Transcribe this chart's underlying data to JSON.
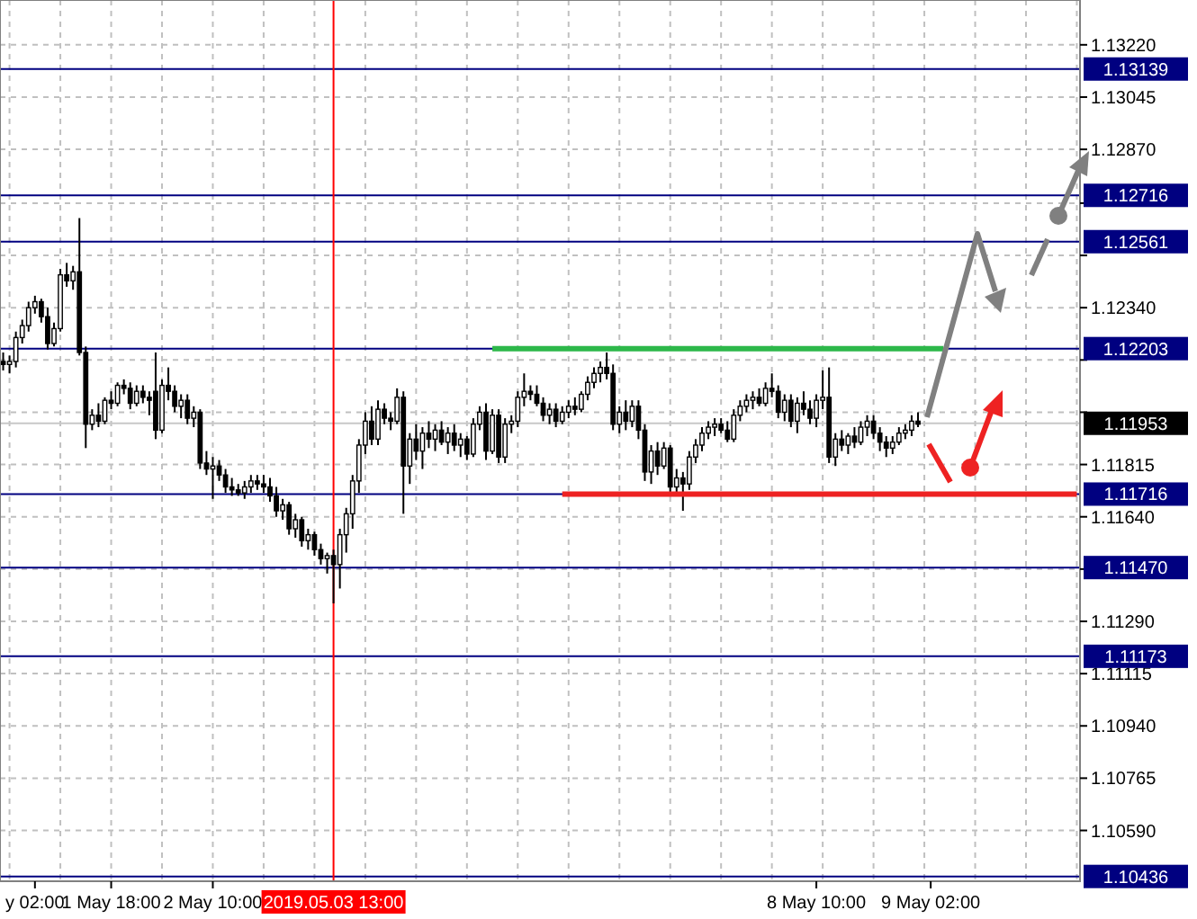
{
  "chart_data": {
    "type": "candlestick",
    "categories": [
      null,
      null,
      null,
      null,
      null,
      "y 02:00",
      null,
      null,
      null,
      null,
      null,
      null,
      null,
      null,
      null,
      null,
      null,
      "1 May 18:00",
      null,
      null,
      null,
      null,
      null,
      null,
      null,
      null,
      null,
      null,
      null,
      null,
      null,
      null,
      null,
      "2 May 10:00",
      null,
      null,
      null,
      null,
      null,
      null,
      null,
      null,
      null,
      null,
      null,
      null,
      null,
      null,
      null,
      null,
      null,
      null,
      "2019.05.03 13:00",
      null,
      null,
      null,
      null,
      null,
      null,
      null,
      null,
      null,
      null,
      null,
      null,
      null,
      null,
      null,
      null,
      null,
      null,
      null,
      null,
      null,
      null,
      null,
      null,
      null,
      null,
      null,
      null,
      null,
      null,
      null,
      null,
      null,
      null,
      null,
      null,
      null,
      null,
      null,
      null,
      null,
      null,
      null,
      null,
      null,
      null,
      null,
      null,
      null,
      null,
      null,
      null,
      null,
      null,
      null,
      null,
      null,
      null,
      null,
      null,
      null,
      null,
      null,
      null,
      null,
      null,
      null,
      null,
      null,
      null,
      null,
      null,
      null,
      null,
      null,
      "8 May 10:00",
      null,
      null,
      null,
      null,
      null,
      null,
      null,
      null,
      null,
      null,
      null,
      null,
      null,
      null,
      null,
      null,
      null,
      "9 May 02:00",
      null,
      null,
      null,
      null,
      null,
      null,
      null,
      null,
      null,
      null,
      null,
      null,
      null,
      null,
      null,
      null,
      null,
      null,
      null,
      null,
      null,
      null,
      null
    ],
    "ohlc": [
      [
        1.1216,
        1.1219,
        1.1213,
        1.1215
      ],
      [
        1.1215,
        1.1218,
        1.1212,
        1.1216
      ],
      [
        1.1216,
        1.1226,
        1.1214,
        1.1224
      ],
      [
        1.1224,
        1.123,
        1.1222,
        1.1228
      ],
      [
        1.1228,
        1.1236,
        1.1226,
        1.1234
      ],
      [
        1.1234,
        1.1238,
        1.1232,
        1.1236
      ],
      [
        1.1236,
        1.1237,
        1.1229,
        1.1231
      ],
      [
        1.1231,
        1.1234,
        1.122,
        1.1222
      ],
      [
        1.1222,
        1.1229,
        1.1221,
        1.1227
      ],
      [
        1.1227,
        1.1247,
        1.1226,
        1.1245
      ],
      [
        1.1245,
        1.1249,
        1.1241,
        1.1243
      ],
      [
        1.1243,
        1.1248,
        1.124,
        1.1246
      ],
      [
        1.1246,
        1.1264,
        1.1218,
        1.1219
      ],
      [
        1.1219,
        1.1221,
        1.1187,
        1.1195
      ],
      [
        1.1195,
        1.12,
        1.1193,
        1.1198
      ],
      [
        1.1198,
        1.1202,
        1.1194,
        1.1196
      ],
      [
        1.1196,
        1.1204,
        1.1195,
        1.1203
      ],
      [
        1.1203,
        1.1206,
        1.12,
        1.1202
      ],
      [
        1.1202,
        1.1209,
        1.1201,
        1.1208
      ],
      [
        1.1208,
        1.121,
        1.1205,
        1.1207
      ],
      [
        1.1207,
        1.1209,
        1.12,
        1.1202
      ],
      [
        1.1202,
        1.1208,
        1.1201,
        1.1206
      ],
      [
        1.1206,
        1.1208,
        1.1202,
        1.1204
      ],
      [
        1.1204,
        1.1206,
        1.1198,
        1.1203
      ],
      [
        1.1206,
        1.1219,
        1.119,
        1.1193
      ],
      [
        1.1193,
        1.121,
        1.1192,
        1.1208
      ],
      [
        1.1208,
        1.1214,
        1.1203,
        1.1206
      ],
      [
        1.1206,
        1.1208,
        1.1199,
        1.1201
      ],
      [
        1.1201,
        1.1205,
        1.1197,
        1.1203
      ],
      [
        1.1203,
        1.1205,
        1.1195,
        1.1197
      ],
      [
        1.1197,
        1.1201,
        1.1194,
        1.1199
      ],
      [
        1.1199,
        1.12,
        1.118,
        1.1182
      ],
      [
        1.1182,
        1.1186,
        1.1178,
        1.118
      ],
      [
        1.118,
        1.1184,
        1.117,
        1.1181
      ],
      [
        1.1181,
        1.1183,
        1.1176,
        1.1178
      ],
      [
        1.1178,
        1.118,
        1.1172,
        1.1174
      ],
      [
        1.1174,
        1.1177,
        1.1171,
        1.1173
      ],
      [
        1.1173,
        1.1175,
        1.1171,
        1.1172
      ],
      [
        1.1172,
        1.1176,
        1.117,
        1.1174
      ],
      [
        1.1174,
        1.1178,
        1.1172,
        1.1176
      ],
      [
        1.1176,
        1.1178,
        1.1173,
        1.1175
      ],
      [
        1.1175,
        1.1178,
        1.1172,
        1.1174
      ],
      [
        1.1174,
        1.1177,
        1.1169,
        1.1171
      ],
      [
        1.1171,
        1.1174,
        1.1164,
        1.1166
      ],
      [
        1.1166,
        1.117,
        1.1163,
        1.1168
      ],
      [
        1.1168,
        1.1169,
        1.1158,
        1.116
      ],
      [
        1.116,
        1.1165,
        1.1157,
        1.1163
      ],
      [
        1.1163,
        1.1164,
        1.1154,
        1.1156
      ],
      [
        1.1156,
        1.116,
        1.1153,
        1.1158
      ],
      [
        1.1158,
        1.1159,
        1.1151,
        1.1153
      ],
      [
        1.1153,
        1.1155,
        1.1148,
        1.115
      ],
      [
        1.115,
        1.1152,
        1.1145,
        1.1151
      ],
      [
        1.1151,
        1.1153,
        1.1135,
        1.1148
      ],
      [
        1.1148,
        1.116,
        1.114,
        1.1158
      ],
      [
        1.1158,
        1.1167,
        1.1152,
        1.1165
      ],
      [
        1.1165,
        1.1178,
        1.116,
        1.1176
      ],
      [
        1.1176,
        1.119,
        1.1172,
        1.1188
      ],
      [
        1.1188,
        1.1199,
        1.1185,
        1.1196
      ],
      [
        1.1196,
        1.1201,
        1.1188,
        1.119
      ],
      [
        1.119,
        1.1203,
        1.1188,
        1.12
      ],
      [
        1.12,
        1.1202,
        1.1195,
        1.1197
      ],
      [
        1.1197,
        1.1199,
        1.1193,
        1.1196
      ],
      [
        1.1196,
        1.1207,
        1.1195,
        1.1204
      ],
      [
        1.1204,
        1.1206,
        1.1165,
        1.1181
      ],
      [
        1.1181,
        1.1192,
        1.1175,
        1.119
      ],
      [
        1.119,
        1.1195,
        1.1183,
        1.1186
      ],
      [
        1.1186,
        1.1194,
        1.118,
        1.1192
      ],
      [
        1.1192,
        1.1196,
        1.1187,
        1.119
      ],
      [
        1.119,
        1.1195,
        1.1186,
        1.1193
      ],
      [
        1.1193,
        1.1196,
        1.1188,
        1.1189
      ],
      [
        1.1189,
        1.1194,
        1.1185,
        1.1192
      ],
      [
        1.1192,
        1.1195,
        1.1186,
        1.1188
      ],
      [
        1.1188,
        1.1192,
        1.1184,
        1.119
      ],
      [
        1.119,
        1.1191,
        1.1183,
        1.1185
      ],
      [
        1.1185,
        1.1197,
        1.1184,
        1.1195
      ],
      [
        1.1195,
        1.1201,
        1.1193,
        1.1199
      ],
      [
        1.1199,
        1.1202,
        1.1183,
        1.1186
      ],
      [
        1.1186,
        1.12,
        1.1185,
        1.1198
      ],
      [
        1.1198,
        1.12,
        1.1182,
        1.1184
      ],
      [
        1.1184,
        1.1197,
        1.1182,
        1.1195
      ],
      [
        1.1195,
        1.1198,
        1.1192,
        1.1196
      ],
      [
        1.1196,
        1.1206,
        1.1194,
        1.1204
      ],
      [
        1.1204,
        1.1212,
        1.1201,
        1.1206
      ],
      [
        1.1206,
        1.1208,
        1.1203,
        1.1205
      ],
      [
        1.1205,
        1.1208,
        1.1201,
        1.1202
      ],
      [
        1.1202,
        1.1204,
        1.1196,
        1.1198
      ],
      [
        1.1198,
        1.1202,
        1.1195,
        1.12
      ],
      [
        1.12,
        1.1202,
        1.1194,
        1.1196
      ],
      [
        1.1196,
        1.1201,
        1.1195,
        1.1199
      ],
      [
        1.1199,
        1.1203,
        1.1197,
        1.1201
      ],
      [
        1.1201,
        1.1204,
        1.1198,
        1.12
      ],
      [
        1.12,
        1.1206,
        1.1199,
        1.1205
      ],
      [
        1.1205,
        1.1211,
        1.1203,
        1.1209
      ],
      [
        1.1209,
        1.1214,
        1.1207,
        1.1212
      ],
      [
        1.1212,
        1.1216,
        1.1209,
        1.1214
      ],
      [
        1.1214,
        1.1219,
        1.121,
        1.1212
      ],
      [
        1.1212,
        1.1215,
        1.1193,
        1.1195
      ],
      [
        1.1195,
        1.1201,
        1.1192,
        1.1199
      ],
      [
        1.1199,
        1.1203,
        1.1193,
        1.1196
      ],
      [
        1.1196,
        1.1203,
        1.1194,
        1.1201
      ],
      [
        1.1201,
        1.1203,
        1.119,
        1.1193
      ],
      [
        1.1193,
        1.1195,
        1.1176,
        1.1179
      ],
      [
        1.1179,
        1.1188,
        1.1175,
        1.1186
      ],
      [
        1.1186,
        1.1189,
        1.1178,
        1.1181
      ],
      [
        1.1181,
        1.1189,
        1.118,
        1.1187
      ],
      [
        1.1187,
        1.1188,
        1.1172,
        1.1174
      ],
      [
        1.1174,
        1.118,
        1.1171,
        1.1177
      ],
      [
        1.1177,
        1.1179,
        1.1166,
        1.1175
      ],
      [
        1.1175,
        1.1186,
        1.1173,
        1.1184
      ],
      [
        1.1184,
        1.119,
        1.1182,
        1.1188
      ],
      [
        1.1188,
        1.1194,
        1.1186,
        1.1192
      ],
      [
        1.1192,
        1.1196,
        1.119,
        1.1194
      ],
      [
        1.1194,
        1.1197,
        1.1191,
        1.1195
      ],
      [
        1.1195,
        1.1197,
        1.1192,
        1.1193
      ],
      [
        1.1193,
        1.1196,
        1.1189,
        1.119
      ],
      [
        1.119,
        1.12,
        1.1189,
        1.1198
      ],
      [
        1.1198,
        1.1203,
        1.1196,
        1.1201
      ],
      [
        1.1201,
        1.1205,
        1.1199,
        1.1203
      ],
      [
        1.1203,
        1.1206,
        1.12,
        1.1204
      ],
      [
        1.1204,
        1.1207,
        1.1201,
        1.1202
      ],
      [
        1.1202,
        1.1209,
        1.1201,
        1.1207
      ],
      [
        1.1207,
        1.1212,
        1.1204,
        1.1206
      ],
      [
        1.1206,
        1.1208,
        1.1197,
        1.1199
      ],
      [
        1.1199,
        1.1205,
        1.1196,
        1.1203
      ],
      [
        1.1203,
        1.1205,
        1.1194,
        1.1196
      ],
      [
        1.1196,
        1.1204,
        1.1192,
        1.1202
      ],
      [
        1.1202,
        1.1206,
        1.1198,
        1.12
      ],
      [
        1.12,
        1.1203,
        1.1195,
        1.1197
      ],
      [
        1.1197,
        1.1205,
        1.1194,
        1.1203
      ],
      [
        1.1203,
        1.1213,
        1.12,
        1.1204
      ],
      [
        1.1204,
        1.1214,
        1.1182,
        1.1184
      ],
      [
        1.1184,
        1.1192,
        1.1181,
        1.119
      ],
      [
        1.119,
        1.1193,
        1.1186,
        1.1188
      ],
      [
        1.1188,
        1.1192,
        1.1185,
        1.1191
      ],
      [
        1.1191,
        1.1194,
        1.1187,
        1.1189
      ],
      [
        1.1189,
        1.1196,
        1.1188,
        1.1194
      ],
      [
        1.1194,
        1.1198,
        1.1191,
        1.1196
      ],
      [
        1.1196,
        1.1198,
        1.119,
        1.1192
      ],
      [
        1.1192,
        1.1194,
        1.1186,
        1.1189
      ],
      [
        1.1189,
        1.1191,
        1.1184,
        1.1187
      ],
      [
        1.1187,
        1.1191,
        1.1185,
        1.1189
      ],
      [
        1.1189,
        1.1194,
        1.1188,
        1.1192
      ],
      [
        1.1192,
        1.1195,
        1.119,
        1.1193
      ],
      [
        1.1193,
        1.1198,
        1.1191,
        1.1196
      ],
      [
        1.1196,
        1.1199,
        1.1194,
        1.1195
      ],
      null,
      null,
      null,
      null,
      null,
      null,
      null,
      null,
      null,
      null,
      null,
      null,
      null,
      null,
      null,
      null,
      null,
      null,
      null,
      null,
      null,
      null,
      null,
      null,
      null
    ],
    "series": [
      {
        "type": "line",
        "color": "#2db84a",
        "values": [
          null,
          null,
          null,
          null,
          null,
          null,
          null,
          null,
          null,
          null,
          null,
          null,
          null,
          null,
          null,
          null,
          null,
          null,
          null,
          null,
          null,
          null,
          null,
          null,
          null,
          null,
          null,
          null,
          null,
          null,
          null,
          null,
          null,
          null,
          null,
          null,
          null,
          null,
          null,
          null,
          null,
          null,
          null,
          null,
          null,
          null,
          null,
          null,
          null,
          null,
          null,
          null,
          null,
          null,
          null,
          null,
          null,
          null,
          null,
          null,
          null,
          null,
          null,
          null,
          null,
          null,
          null,
          null,
          null,
          null,
          null,
          null,
          null,
          null,
          null,
          null,
          null,
          1.12203,
          1.12203,
          1.12203,
          1.12203,
          1.12203,
          1.12203,
          1.12203,
          1.12203,
          1.12203,
          1.12203,
          1.12203,
          1.12203,
          1.12203,
          1.12203,
          1.12203,
          1.12203,
          1.12203,
          1.12203,
          1.12203,
          1.12203,
          1.12203,
          1.12203,
          1.12203,
          1.12203,
          1.12203,
          1.12203,
          1.12203,
          1.12203,
          1.12203,
          1.12203,
          1.12203,
          1.12203,
          1.12203,
          1.12203,
          1.12203,
          1.12203,
          1.12203,
          1.12203,
          1.12203,
          1.12203,
          1.12203,
          1.12203,
          1.12203,
          1.12203,
          1.12203,
          1.12203,
          1.12203,
          1.12203,
          1.12203,
          1.12203,
          1.12203,
          1.12203,
          1.12203,
          1.12203,
          1.12203,
          1.12203,
          1.12203,
          1.12203,
          1.12203,
          1.12203,
          1.12203,
          1.12203,
          1.12203,
          1.12203,
          1.12203,
          1.12203,
          1.12203,
          1.12203,
          1.12203,
          1.12203,
          1.12203,
          1.12203,
          null,
          null,
          null,
          null,
          null,
          null,
          null,
          null,
          null,
          null,
          null,
          null,
          null,
          null,
          null,
          null,
          null,
          null,
          null,
          null,
          null
        ]
      },
      {
        "type": "line",
        "color": "#ee2222",
        "values": [
          null,
          null,
          null,
          null,
          null,
          null,
          null,
          null,
          null,
          null,
          null,
          null,
          null,
          null,
          null,
          null,
          null,
          null,
          null,
          null,
          null,
          null,
          null,
          null,
          null,
          null,
          null,
          null,
          null,
          null,
          null,
          null,
          null,
          null,
          null,
          null,
          null,
          null,
          null,
          null,
          null,
          null,
          null,
          null,
          null,
          null,
          null,
          null,
          null,
          null,
          null,
          null,
          null,
          null,
          null,
          null,
          null,
          null,
          null,
          null,
          null,
          null,
          null,
          null,
          null,
          null,
          null,
          null,
          null,
          null,
          null,
          null,
          null,
          null,
          null,
          null,
          null,
          null,
          null,
          null,
          null,
          null,
          null,
          null,
          null,
          null,
          null,
          null,
          1.11716,
          1.11716,
          1.11716,
          1.11716,
          1.11716,
          1.11716,
          1.11716,
          1.11716,
          1.11716,
          1.11716,
          1.11716,
          1.11716,
          1.11716,
          1.11716,
          1.11716,
          1.11716,
          1.11716,
          1.11716,
          1.11716,
          1.11716,
          1.11716,
          1.11716,
          1.11716,
          1.11716,
          1.11716,
          1.11716,
          1.11716,
          1.11716,
          1.11716,
          1.11716,
          1.11716,
          1.11716,
          1.11716,
          1.11716,
          1.11716,
          1.11716,
          1.11716,
          1.11716,
          1.11716,
          1.11716,
          1.11716,
          1.11716,
          1.11716,
          1.11716,
          1.11716,
          1.11716,
          1.11716,
          1.11716,
          1.11716,
          1.11716,
          1.11716,
          1.11716,
          1.11716,
          1.11716,
          1.11716,
          1.11716,
          1.11716,
          1.11716,
          1.11716,
          1.11716,
          1.11716,
          1.11716,
          1.11716,
          1.11716,
          1.11716,
          1.11716,
          1.11716,
          1.11716,
          1.11716,
          1.11716,
          1.11716,
          1.11716,
          1.11716,
          1.11716,
          1.11716,
          1.11716,
          1.11716,
          1.11716,
          1.11716,
          1.11716,
          1.11716,
          1.11716
        ]
      }
    ],
    "ylim": [
      1.1042,
      1.1337
    ],
    "yticks": [
      {
        "value": 1.1322,
        "label": "1.13220"
      },
      1.13045,
      {
        "value": 1.1287,
        "label": "1.12870"
      },
      {
        "value": 1.1269,
        "label": null
      },
      {
        "value": 1.12515,
        "label": null
      },
      {
        "value": 1.1234,
        "label": "1.12340"
      },
      {
        "value": 1.12165,
        "label": null
      },
      {
        "value": 1.1199,
        "label": null
      },
      1.11815,
      {
        "value": 1.1164,
        "label": "1.11640"
      },
      {
        "value": 1.11465,
        "label": null
      },
      {
        "value": 1.1129,
        "label": "1.11290"
      },
      1.11115,
      {
        "value": 1.1094,
        "label": "1.10940"
      },
      1.10765,
      {
        "value": 1.1059,
        "label": "1.10590"
      }
    ],
    "ref_lines": [
      {
        "axis": "y",
        "value": 1.13139,
        "label": "1.13139",
        "color": "#000080"
      },
      {
        "axis": "y",
        "value": 1.12716,
        "label": "1.12716",
        "color": "#000080"
      },
      {
        "axis": "y",
        "value": 1.12561,
        "label": "1.12561",
        "color": "#000080"
      },
      {
        "axis": "y",
        "value": 1.12203,
        "label": "1.12203",
        "color": "#000080"
      },
      {
        "axis": "y",
        "value": 1.11953,
        "label": "1.11953",
        "color": "#c8c8c8"
      },
      {
        "axis": "y",
        "value": 1.11716,
        "label": "1.11716",
        "color": "#000080"
      },
      {
        "axis": "y",
        "value": 1.1147,
        "label": "1.11470",
        "color": "#000080"
      },
      {
        "axis": "y",
        "value": 1.11173,
        "label": "1.11173",
        "color": "#000080"
      },
      {
        "axis": "y",
        "value": 1.10436,
        "label": "1.10436",
        "color": "#000080"
      },
      {
        "axis": "x",
        "value": "2019.05.03 13:00",
        "color": "#ff0000"
      }
    ],
    "grid": true
  }
}
